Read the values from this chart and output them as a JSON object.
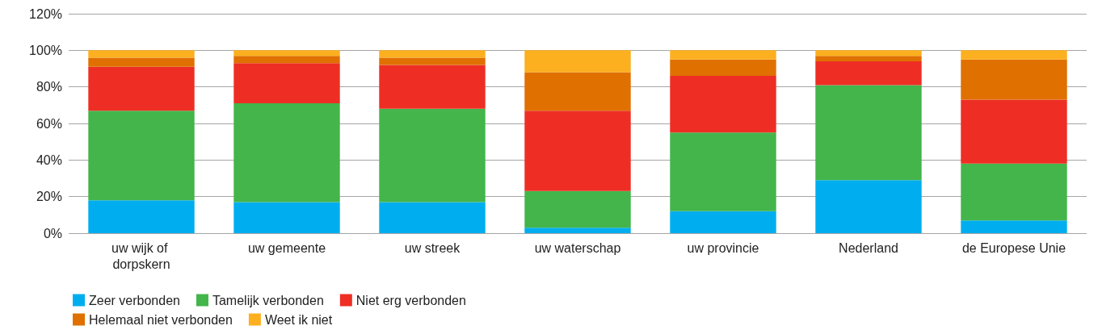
{
  "chart_data": {
    "type": "bar",
    "stacked": true,
    "categories": [
      "uw wijk of dorpskern",
      "uw gemeente",
      "uw streek",
      "uw waterschap",
      "uw provincie",
      "Nederland",
      "de Europese Unie"
    ],
    "series": [
      {
        "name": "Zeer verbonden",
        "color": "#00aeef",
        "values": [
          18,
          17,
          17,
          3,
          12,
          29,
          7
        ]
      },
      {
        "name": "Tamelijk verbonden",
        "color": "#43b54b",
        "values": [
          49,
          54,
          51,
          20,
          43,
          52,
          31
        ]
      },
      {
        "name": "Niet erg verbonden",
        "color": "#ee2e24",
        "values": [
          24,
          22,
          24,
          44,
          31,
          13,
          35
        ]
      },
      {
        "name": "Helemaal niet verbonden",
        "color": "#e07000",
        "values": [
          5,
          4,
          4,
          21,
          9,
          3,
          22
        ]
      },
      {
        "name": "Weet ik niet",
        "color": "#fcaf1f",
        "values": [
          4,
          3,
          4,
          12,
          5,
          3,
          5
        ]
      }
    ],
    "ylim": [
      0,
      120
    ],
    "yticks": [
      {
        "value": 0,
        "label": "0%"
      },
      {
        "value": 20,
        "label": "20%"
      },
      {
        "value": 40,
        "label": "40%"
      },
      {
        "value": 60,
        "label": "60%"
      },
      {
        "value": 80,
        "label": "80%"
      },
      {
        "value": 100,
        "label": "100%"
      },
      {
        "value": 120,
        "label": "120%"
      }
    ],
    "grid": "y",
    "legend": "bottom left"
  }
}
